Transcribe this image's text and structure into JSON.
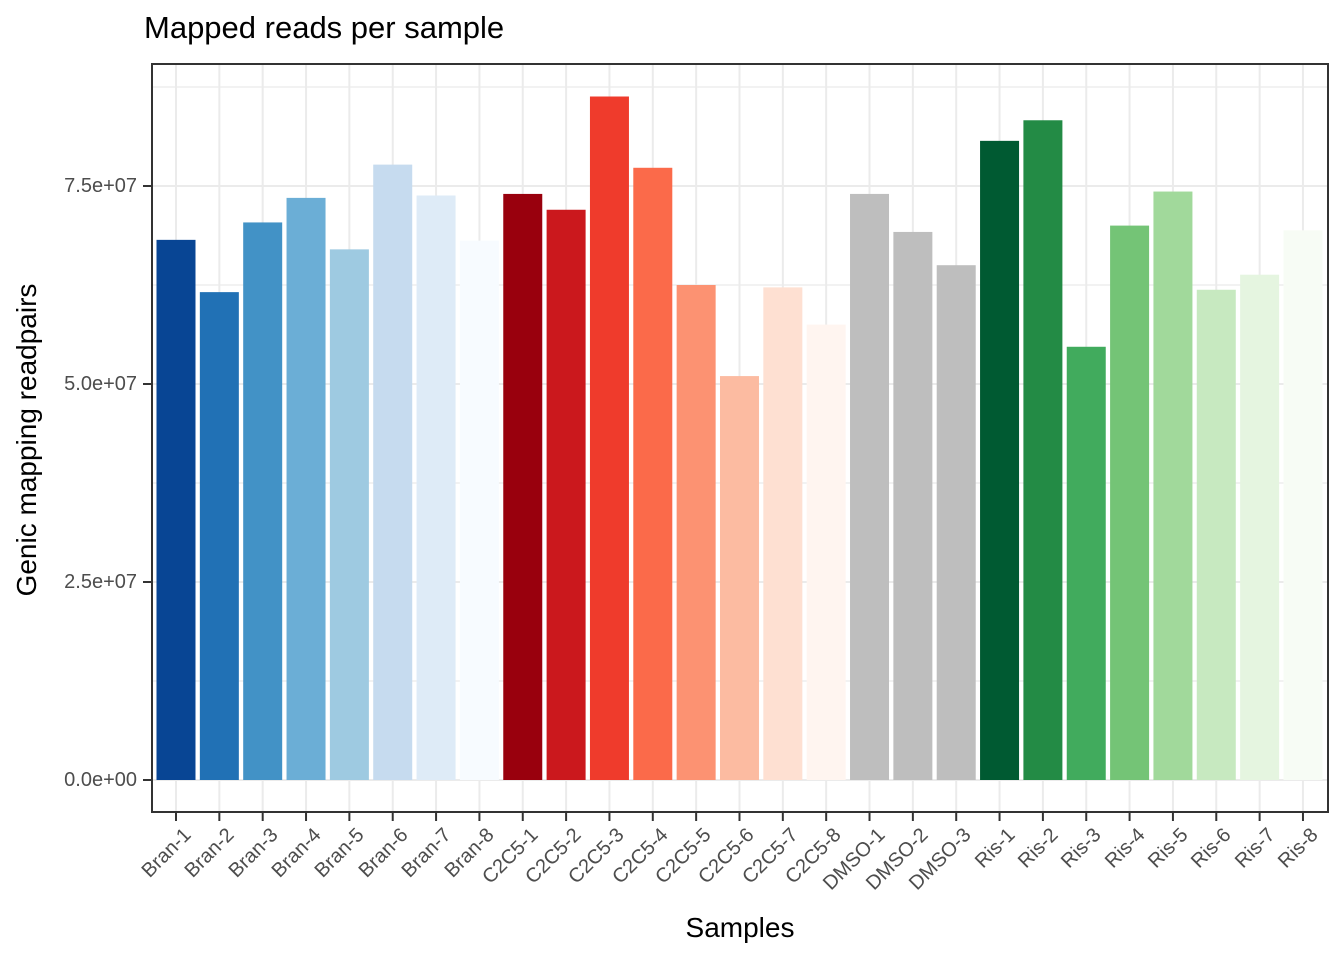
{
  "title": "Mapped reads per sample",
  "axes": {
    "x_title": "Samples",
    "y_title": "Genic mapping readpairs",
    "y_tick_labels": [
      "0.0e+00",
      "2.5e+07",
      "5.0e+07",
      "7.5e+07"
    ]
  },
  "colors": {
    "background": "#FFFFFF",
    "panel_background": "#FFFFFF",
    "panel_border": "#333333",
    "gridline": "#EBEBEB",
    "tick_mark": "#333333",
    "axis_text": "#4D4D4D",
    "title_text": "#000000"
  },
  "chart_data": {
    "type": "bar",
    "title": "Mapped reads per sample",
    "xlabel": "Samples",
    "ylabel": "Genic mapping readpairs",
    "grid": true,
    "legend": false,
    "ylim": [
      0,
      90600000
    ],
    "y_major_ticks": [
      0,
      25000000,
      50000000,
      75000000
    ],
    "y_minor_gridlines": [
      12500000,
      37500000,
      62500000,
      87500000
    ],
    "bar_width_fraction": 0.9,
    "categories": [
      "Bran-1",
      "Bran-2",
      "Bran-3",
      "Bran-4",
      "Bran-5",
      "Bran-6",
      "Bran-7",
      "Bran-8",
      "C2C5-1",
      "C2C5-2",
      "C2C5-3",
      "C2C5-4",
      "C2C5-5",
      "C2C5-6",
      "C2C5-7",
      "C2C5-8",
      "DMSO-1",
      "DMSO-2",
      "DMSO-3",
      "Ris-1",
      "Ris-2",
      "Ris-3",
      "Ris-4",
      "Ris-5",
      "Ris-6",
      "Ris-7",
      "Ris-8"
    ],
    "values": [
      68200000,
      61600000,
      70400000,
      73500000,
      67000000,
      77700000,
      73800000,
      68100000,
      74000000,
      72000000,
      86300000,
      77300000,
      62500000,
      51000000,
      62200000,
      57500000,
      74000000,
      69200000,
      65000000,
      80700000,
      83300000,
      54700000,
      70000000,
      74300000,
      61900000,
      63800000,
      69400000
    ],
    "bar_colors": [
      "#084594",
      "#2171B5",
      "#4292C6",
      "#6BAED6",
      "#9ECAE1",
      "#C6DBEF",
      "#DEEBF7",
      "#F7FBFF",
      "#99000D",
      "#CB181D",
      "#EF3B2C",
      "#FB6A4A",
      "#FC9272",
      "#FCBBA1",
      "#FEE0D2",
      "#FFF5F0",
      "#BEBEBE",
      "#BEBEBE",
      "#BEBEBE",
      "#005A32",
      "#238B45",
      "#41AB5D",
      "#74C476",
      "#A1D99B",
      "#C7E9C0",
      "#E5F5E0",
      "#F7FCF5"
    ]
  }
}
